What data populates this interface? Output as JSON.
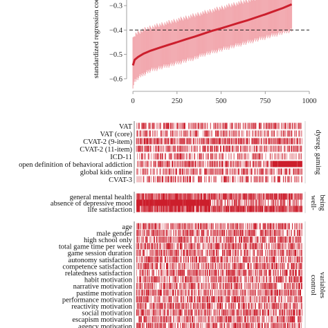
{
  "chart_data": [
    {
      "type": "line",
      "ylabel": "standardized regression coefficient",
      "xlim": [
        -20,
        1000
      ],
      "ylim": [
        -0.64,
        -0.26
      ],
      "xticks": [
        "0",
        "250",
        "500",
        "750",
        "1000"
      ],
      "xtick_values": [
        0,
        250,
        500,
        750,
        1000
      ],
      "yticks": [
        "-0.3",
        "-0.4",
        "-0.5",
        "-0.6"
      ],
      "ytick_values": [
        -0.3,
        -0.4,
        -0.5,
        -0.6
      ],
      "reference_line": -0.4,
      "n_specifications": 960,
      "series": [
        {
          "x": [
            0,
            10,
            30,
            60,
            100,
            150,
            200,
            250,
            300,
            350,
            400,
            450,
            500,
            550,
            600,
            650,
            700,
            750,
            800,
            850,
            900
          ],
          "y": [
            -0.545,
            -0.522,
            -0.51,
            -0.497,
            -0.485,
            -0.473,
            -0.461,
            -0.45,
            -0.438,
            -0.427,
            -0.415,
            -0.403,
            -0.393,
            -0.382,
            -0.371,
            -0.36,
            -0.348,
            -0.336,
            -0.323,
            -0.31,
            -0.295
          ],
          "ci_low": [
            -0.63,
            -0.61,
            -0.595,
            -0.58,
            -0.565,
            -0.555,
            -0.545,
            -0.535,
            -0.525,
            -0.515,
            -0.5,
            -0.49,
            -0.48,
            -0.47,
            -0.46,
            -0.45,
            -0.44,
            -0.43,
            -0.42,
            -0.41,
            -0.4
          ],
          "ci_high": [
            -0.44,
            -0.42,
            -0.41,
            -0.4,
            -0.39,
            -0.38,
            -0.37,
            -0.36,
            -0.35,
            -0.34,
            -0.33,
            -0.32,
            -0.31,
            -0.3,
            -0.29,
            -0.28,
            -0.27,
            -0.26,
            -0.26,
            -0.26,
            -0.26
          ]
        }
      ],
      "colors": {
        "line": "#cc1f2d",
        "band": "#f09ca3",
        "refline": "#222222"
      }
    },
    {
      "type": "heatmap",
      "description_colors": {
        "mark": "#cc1f2d"
      },
      "panels": [
        {
          "title": "dysreg. gaming",
          "rows": [
            "VAT",
            "VAT (core)",
            "CVAT-2 (9-item)",
            "CVAT-2 (11-item)",
            "ICD-11",
            "open definition of behavioral addiction",
            "global kids online",
            "CVAT-3"
          ],
          "mark_density": [
            0.25,
            0.22,
            0.35,
            0.3,
            0.22,
            0.3,
            0.25,
            0.2
          ],
          "dense_segment_share": [
            0.0,
            0.0,
            0.0,
            0.0,
            0.0,
            0.18,
            0.0,
            0.0
          ]
        },
        {
          "title": "well-being",
          "rows": [
            "general mental health",
            "absence of depressive mood",
            "life satisfaction"
          ],
          "mark_density": [
            0.5,
            0.25,
            0.55
          ],
          "dense_segment_share": [
            0.0,
            0.45,
            0.0
          ]
        },
        {
          "title": "control variables",
          "rows": [
            "age",
            "male gender",
            "high school only",
            "total game time per week",
            "game session duration",
            "autonomy satisfaction",
            "competence satisfaction",
            "relatedness satisfaction",
            "habit motivation",
            "narrative motivation",
            "pastime motivation",
            "performance motivation",
            "reactivity motivation",
            "social motivation",
            "escapism motivation",
            "agency motivation"
          ],
          "mark_density": [
            0.3,
            0.3,
            0.3,
            0.3,
            0.3,
            0.3,
            0.3,
            0.3,
            0.3,
            0.3,
            0.3,
            0.3,
            0.3,
            0.3,
            0.3,
            0.3
          ],
          "dense_segment_share": [
            0,
            0,
            0,
            0,
            0,
            0,
            0,
            0,
            0,
            0,
            0,
            0,
            0,
            0,
            0,
            0
          ]
        }
      ]
    }
  ],
  "panel_titles": {
    "dysreg": [
      "dysreg. gaming"
    ],
    "wellbeing": [
      "well-",
      "being"
    ],
    "control": [
      "control",
      "variables"
    ]
  }
}
